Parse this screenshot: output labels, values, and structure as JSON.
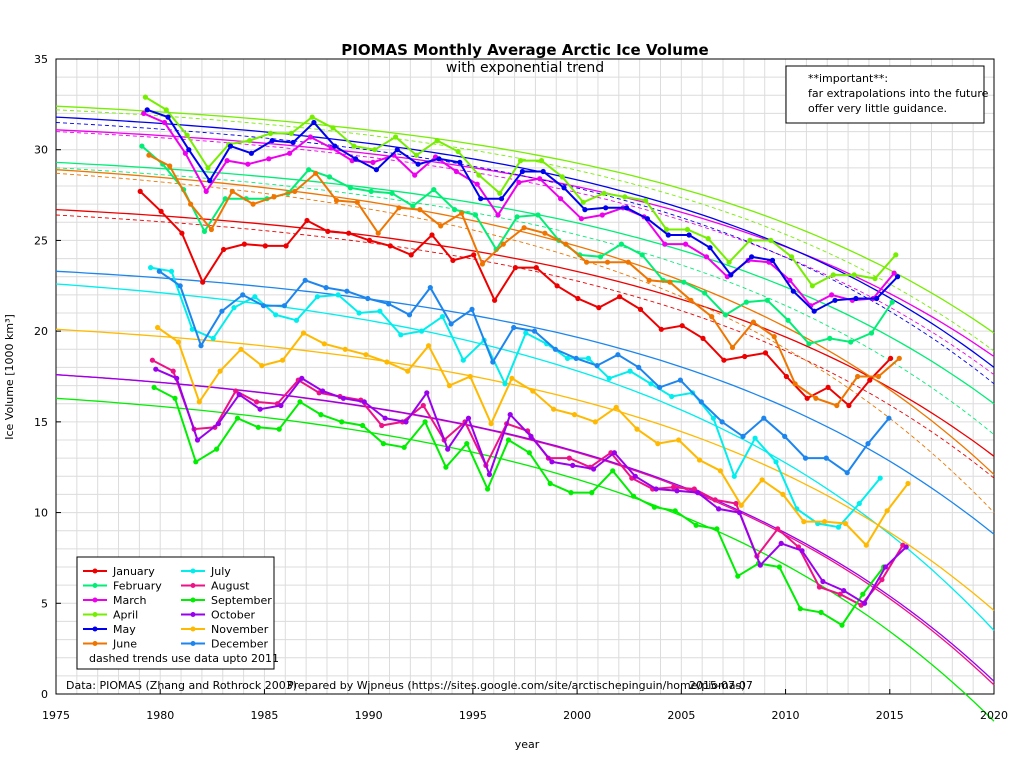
{
  "chart_data": {
    "type": "line",
    "title": "PIOMAS Monthly Average Arctic Ice Volume",
    "subtitle": "with exponential trend",
    "xlabel": "year",
    "ylabel": "Ice Volume [1000 km³]",
    "xlim": [
      1975,
      2020
    ],
    "ylim": [
      0,
      35
    ],
    "xticks": [
      "1975",
      "1980",
      "1985",
      "1990",
      "1995",
      "2000",
      "2005",
      "2010",
      "2015",
      "2020"
    ],
    "yticks": [
      "0",
      "5",
      "10",
      "15",
      "20",
      "25",
      "30",
      "35"
    ],
    "grid": true,
    "legend_position": "bottom-left",
    "note_lines": [
      "**important**:",
      "far extrapolations into the future",
      "offer very little guidance."
    ],
    "legend_note": "dashed trends use data upto 2011",
    "footer_source": "Data: PIOMAS (Zhang and Rothrock 2003)",
    "footer_prepared": "Prepared by Wipneus (https://sites.google.com/site/arctischepinguin/home/piomas)",
    "footer_date": "2015-07-07",
    "series": [
      {
        "name": "January",
        "color": "#ee0000",
        "values": [
          27.7,
          26.6,
          25.4,
          22.7,
          24.5,
          24.8,
          24.7,
          24.7,
          26.1,
          25.5,
          25.4,
          25.0,
          24.7,
          24.2,
          25.3,
          23.9,
          24.2,
          21.7,
          23.5,
          23.5,
          22.5,
          21.8,
          21.3,
          21.9,
          21.2,
          20.1,
          20.3,
          19.6,
          18.4,
          18.6,
          18.8,
          17.5,
          16.3,
          16.9,
          15.9,
          17.3,
          18.5
        ],
        "trend": [
          26.7,
          13.1
        ],
        "trend_dash": [
          26.4,
          11.9
        ]
      },
      {
        "name": "February",
        "color": "#00ee76",
        "values": [
          30.2,
          29.2,
          27.8,
          25.5,
          27.3,
          27.3,
          27.3,
          27.6,
          28.9,
          28.5,
          27.9,
          27.7,
          27.6,
          26.9,
          27.8,
          26.7,
          26.4,
          24.5,
          26.3,
          26.4,
          25.0,
          24.2,
          24.1,
          24.8,
          24.2,
          22.8,
          22.7,
          22.1,
          20.9,
          21.6,
          21.7,
          20.6,
          19.3,
          19.6,
          19.4,
          19.9,
          21.6
        ],
        "trend": [
          29.3,
          16.0
        ],
        "trend_dash": [
          29.0,
          14.3
        ]
      },
      {
        "name": "March",
        "color": "#ee00ee",
        "values": [
          32.0,
          31.5,
          29.8,
          27.7,
          29.4,
          29.2,
          29.5,
          29.8,
          30.7,
          30.1,
          29.4,
          29.3,
          29.7,
          28.6,
          29.6,
          28.8,
          28.1,
          26.4,
          28.2,
          28.4,
          27.3,
          26.2,
          26.4,
          26.8,
          26.3,
          24.8,
          24.8,
          24.1,
          23.0,
          23.9,
          23.8,
          22.8,
          21.4,
          22.0,
          21.7,
          21.8,
          23.2
        ],
        "trend": [
          31.1,
          18.6
        ],
        "trend_dash": [
          31.0,
          17.6
        ]
      },
      {
        "name": "April",
        "color": "#76ee00",
        "values": [
          32.9,
          32.2,
          30.8,
          29.0,
          30.3,
          30.5,
          30.9,
          30.9,
          31.8,
          31.2,
          30.2,
          30.0,
          30.7,
          29.7,
          30.5,
          29.9,
          28.6,
          27.6,
          29.4,
          29.4,
          28.5,
          27.1,
          27.6,
          27.4,
          27.2,
          25.6,
          25.6,
          25.1,
          23.8,
          25.0,
          25.0,
          24.1,
          22.5,
          23.1,
          23.1,
          22.9,
          24.2
        ],
        "trend": [
          32.4,
          19.9
        ],
        "trend_dash": [
          32.2,
          18.9
        ]
      },
      {
        "name": "May",
        "color": "#0000ee",
        "values": [
          32.2,
          31.8,
          30.0,
          28.3,
          30.2,
          29.8,
          30.5,
          30.4,
          31.5,
          30.2,
          29.5,
          28.9,
          30.0,
          29.2,
          29.5,
          29.3,
          27.3,
          27.3,
          28.8,
          28.8,
          27.9,
          26.7,
          26.8,
          26.8,
          26.2,
          25.3,
          25.3,
          24.6,
          23.1,
          24.1,
          23.9,
          22.2,
          21.1,
          21.7,
          21.8,
          21.8,
          23.0
        ],
        "trend": [
          31.8,
          18.0
        ],
        "trend_dash": [
          31.5,
          17.1
        ]
      },
      {
        "name": "June",
        "color": "#ee7600",
        "values": [
          29.7,
          29.1,
          27.0,
          25.6,
          27.7,
          27.0,
          27.4,
          27.7,
          28.7,
          27.2,
          27.1,
          25.4,
          26.8,
          26.7,
          25.8,
          26.5,
          23.7,
          24.8,
          25.7,
          25.4,
          24.8,
          23.8,
          23.8,
          23.8,
          22.8,
          22.7,
          21.7,
          20.8,
          19.1,
          20.5,
          19.7,
          17.1,
          16.3,
          15.9,
          17.5,
          17.5,
          18.5
        ],
        "trend": [
          28.9,
          12.1
        ],
        "trend_dash": [
          28.7,
          10.0
        ]
      },
      {
        "name": "July",
        "color": "#00eeee",
        "values": [
          23.5,
          23.3,
          20.1,
          19.6,
          21.3,
          21.9,
          20.9,
          20.6,
          21.9,
          22.0,
          21.0,
          21.1,
          19.8,
          20.0,
          20.8,
          18.4,
          19.5,
          17.1,
          19.9,
          19.3,
          18.5,
          18.5,
          17.4,
          17.8,
          17.1,
          16.4,
          16.6,
          15.2,
          12.0,
          14.1,
          12.8,
          10.2,
          9.4,
          9.2,
          10.5,
          11.9
        ],
        "trend": [
          22.6,
          3.5
        ]
      },
      {
        "name": "August",
        "color": "#ee1289",
        "values": [
          18.4,
          17.8,
          14.6,
          14.7,
          16.7,
          16.1,
          16.0,
          17.3,
          16.6,
          16.4,
          16.2,
          14.8,
          15.0,
          15.9,
          14.0,
          15.0,
          12.6,
          14.9,
          14.5,
          13.0,
          13.0,
          12.5,
          13.3,
          11.9,
          11.3,
          11.4,
          11.3,
          10.7,
          10.5,
          7.6,
          9.1,
          8.1,
          5.9,
          5.5,
          4.9,
          6.3,
          8.2
        ],
        "trend": [
          17.6,
          0.5
        ]
      },
      {
        "name": "September",
        "color": "#00ee00",
        "values": [
          16.9,
          16.3,
          12.8,
          13.5,
          15.2,
          14.7,
          14.6,
          16.1,
          15.4,
          15.0,
          14.8,
          13.8,
          13.6,
          15.0,
          12.5,
          13.8,
          11.3,
          14.0,
          13.3,
          11.6,
          11.1,
          11.1,
          12.3,
          10.9,
          10.3,
          10.1,
          9.3,
          9.1,
          6.5,
          7.2,
          7.0,
          4.7,
          4.5,
          3.8,
          5.5,
          7.0
        ],
        "trend": [
          16.3,
          -1.5
        ]
      },
      {
        "name": "October",
        "color": "#9a00ee",
        "values": [
          17.9,
          17.4,
          14.0,
          14.9,
          16.5,
          15.7,
          15.9,
          17.4,
          16.7,
          16.3,
          16.1,
          15.2,
          15.0,
          16.6,
          13.5,
          15.2,
          12.1,
          15.4,
          14.2,
          12.8,
          12.6,
          12.4,
          13.3,
          12.0,
          11.3,
          11.2,
          11.1,
          10.2,
          10.0,
          7.1,
          8.3,
          7.9,
          6.2,
          5.7,
          5.0,
          7.0,
          8.1
        ],
        "trend": [
          17.6,
          0.7
        ]
      },
      {
        "name": "November",
        "color": "#ffb900",
        "values": [
          20.2,
          19.4,
          16.1,
          17.8,
          19.0,
          18.1,
          18.4,
          19.9,
          19.3,
          19.0,
          18.7,
          18.3,
          17.8,
          19.2,
          17.0,
          17.5,
          14.9,
          17.4,
          16.7,
          15.7,
          15.4,
          15.0,
          15.8,
          14.6,
          13.8,
          14.0,
          12.9,
          12.3,
          10.4,
          11.8,
          11.0,
          9.5,
          9.5,
          9.4,
          8.2,
          10.1,
          11.6
        ],
        "trend": [
          20.1,
          4.6
        ]
      },
      {
        "name": "December",
        "color": "#1c86ee",
        "values": [
          23.3,
          22.5,
          19.2,
          21.1,
          22.0,
          21.4,
          21.4,
          22.8,
          22.4,
          22.2,
          21.8,
          21.5,
          20.9,
          22.4,
          20.4,
          21.2,
          18.3,
          20.2,
          20.0,
          19.0,
          18.5,
          18.1,
          18.7,
          18.0,
          16.9,
          17.3,
          16.1,
          15.0,
          14.2,
          15.2,
          14.2,
          13.0,
          13.0,
          12.2,
          13.8,
          15.2
        ],
        "trend": [
          23.3,
          8.8
        ]
      }
    ]
  }
}
